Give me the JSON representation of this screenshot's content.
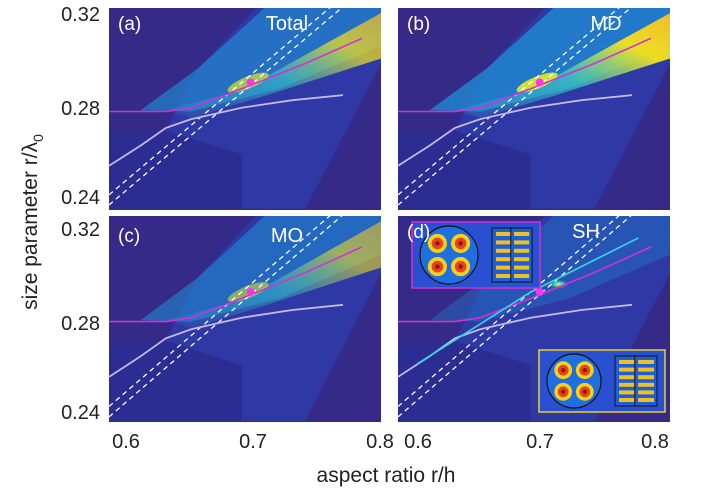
{
  "chart_data": {
    "type": "heatmap",
    "shared_xlabel": "aspect ratio r/h",
    "shared_ylabel": "size parameter r/λ",
    "shared_ylabel_subscript": "0",
    "xlim": [
      0.595,
      0.81
    ],
    "ylim": [
      0.24,
      0.32
    ],
    "x_ticks": [
      "0.6",
      "0.7",
      "0.8"
    ],
    "x_ticks_right": [
      "0.6",
      "0.7",
      "0.8"
    ],
    "y_ticks_top": [
      "0.32",
      "0.28",
      "0.24"
    ],
    "y_ticks_bottom": [
      "0.32",
      "0.28",
      "0.24"
    ],
    "colors": {
      "background": "#352a87",
      "field_low": "#2c3fb0",
      "field_mid": "#1f8fd6",
      "hot": "#f9fb0e",
      "magenta_line": "#d42fd6",
      "pale_line": "#c8b8e8",
      "dashed_line": "#ffffff",
      "cyan_line": "#34d7e6",
      "point": "#ff33ee"
    },
    "point": {
      "x": 0.707,
      "y": 0.2905
    },
    "panels": [
      {
        "label": "(a)",
        "title": "Total",
        "intensity": 0.75,
        "inset": false
      },
      {
        "label": "(b)",
        "title": "MD",
        "intensity": 1.0,
        "inset": false
      },
      {
        "label": "(c)",
        "title": "MO",
        "intensity": 0.6,
        "inset": false
      },
      {
        "label": "(d)",
        "title": "SH",
        "intensity": 0.15,
        "inset": true
      }
    ],
    "curves": {
      "magenta": [
        [
          0.595,
          0.279
        ],
        [
          0.64,
          0.279
        ],
        [
          0.66,
          0.2805
        ],
        [
          0.7,
          0.288
        ],
        [
          0.75,
          0.298
        ],
        [
          0.795,
          0.308
        ]
      ],
      "pale": [
        [
          0.595,
          0.2575
        ],
        [
          0.62,
          0.2655
        ],
        [
          0.64,
          0.2725
        ],
        [
          0.66,
          0.276
        ],
        [
          0.7,
          0.2805
        ],
        [
          0.74,
          0.2835
        ],
        [
          0.78,
          0.2855
        ]
      ],
      "dashed_1": [
        [
          0.595,
          0.246
        ],
        [
          0.8,
          0.333
        ]
      ],
      "dashed_2": [
        [
          0.595,
          0.242
        ],
        [
          0.8,
          0.329
        ]
      ],
      "cyan_d": [
        [
          0.61,
          0.2625
        ],
        [
          0.7,
          0.2905
        ],
        [
          0.785,
          0.3115
        ]
      ]
    }
  }
}
